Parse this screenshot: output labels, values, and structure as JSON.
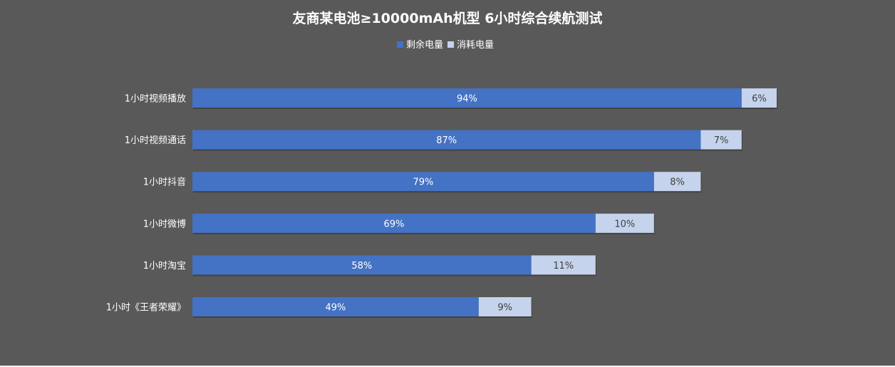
{
  "chart_data": {
    "type": "bar",
    "orientation": "horizontal",
    "stacked": true,
    "title": "友商某电池≥10000mAh机型 6小时综合续航测试",
    "legend_position": "top",
    "categories": [
      "1小时视频播放",
      "1小时视频通话",
      "1小时抖音",
      "1小时微博",
      "1小时淘宝",
      "1小时《王者荣耀》"
    ],
    "series": [
      {
        "name": "剩余电量",
        "values": [
          94,
          87,
          79,
          69,
          58,
          49
        ],
        "labels": [
          "94%",
          "87%",
          "79%",
          "69%",
          "58%",
          "49%"
        ],
        "color": "#4472c4"
      },
      {
        "name": "消耗电量",
        "values": [
          6,
          7,
          8,
          10,
          11,
          9
        ],
        "labels": [
          "6%",
          "7%",
          "8%",
          "10%",
          "11%",
          "9%"
        ],
        "color": "#c5d3ec"
      }
    ],
    "xlim": [
      0,
      100
    ],
    "grid": false,
    "colors": {
      "background": "#595959",
      "text": "#ffffff",
      "label_light_series": "#404040"
    }
  }
}
